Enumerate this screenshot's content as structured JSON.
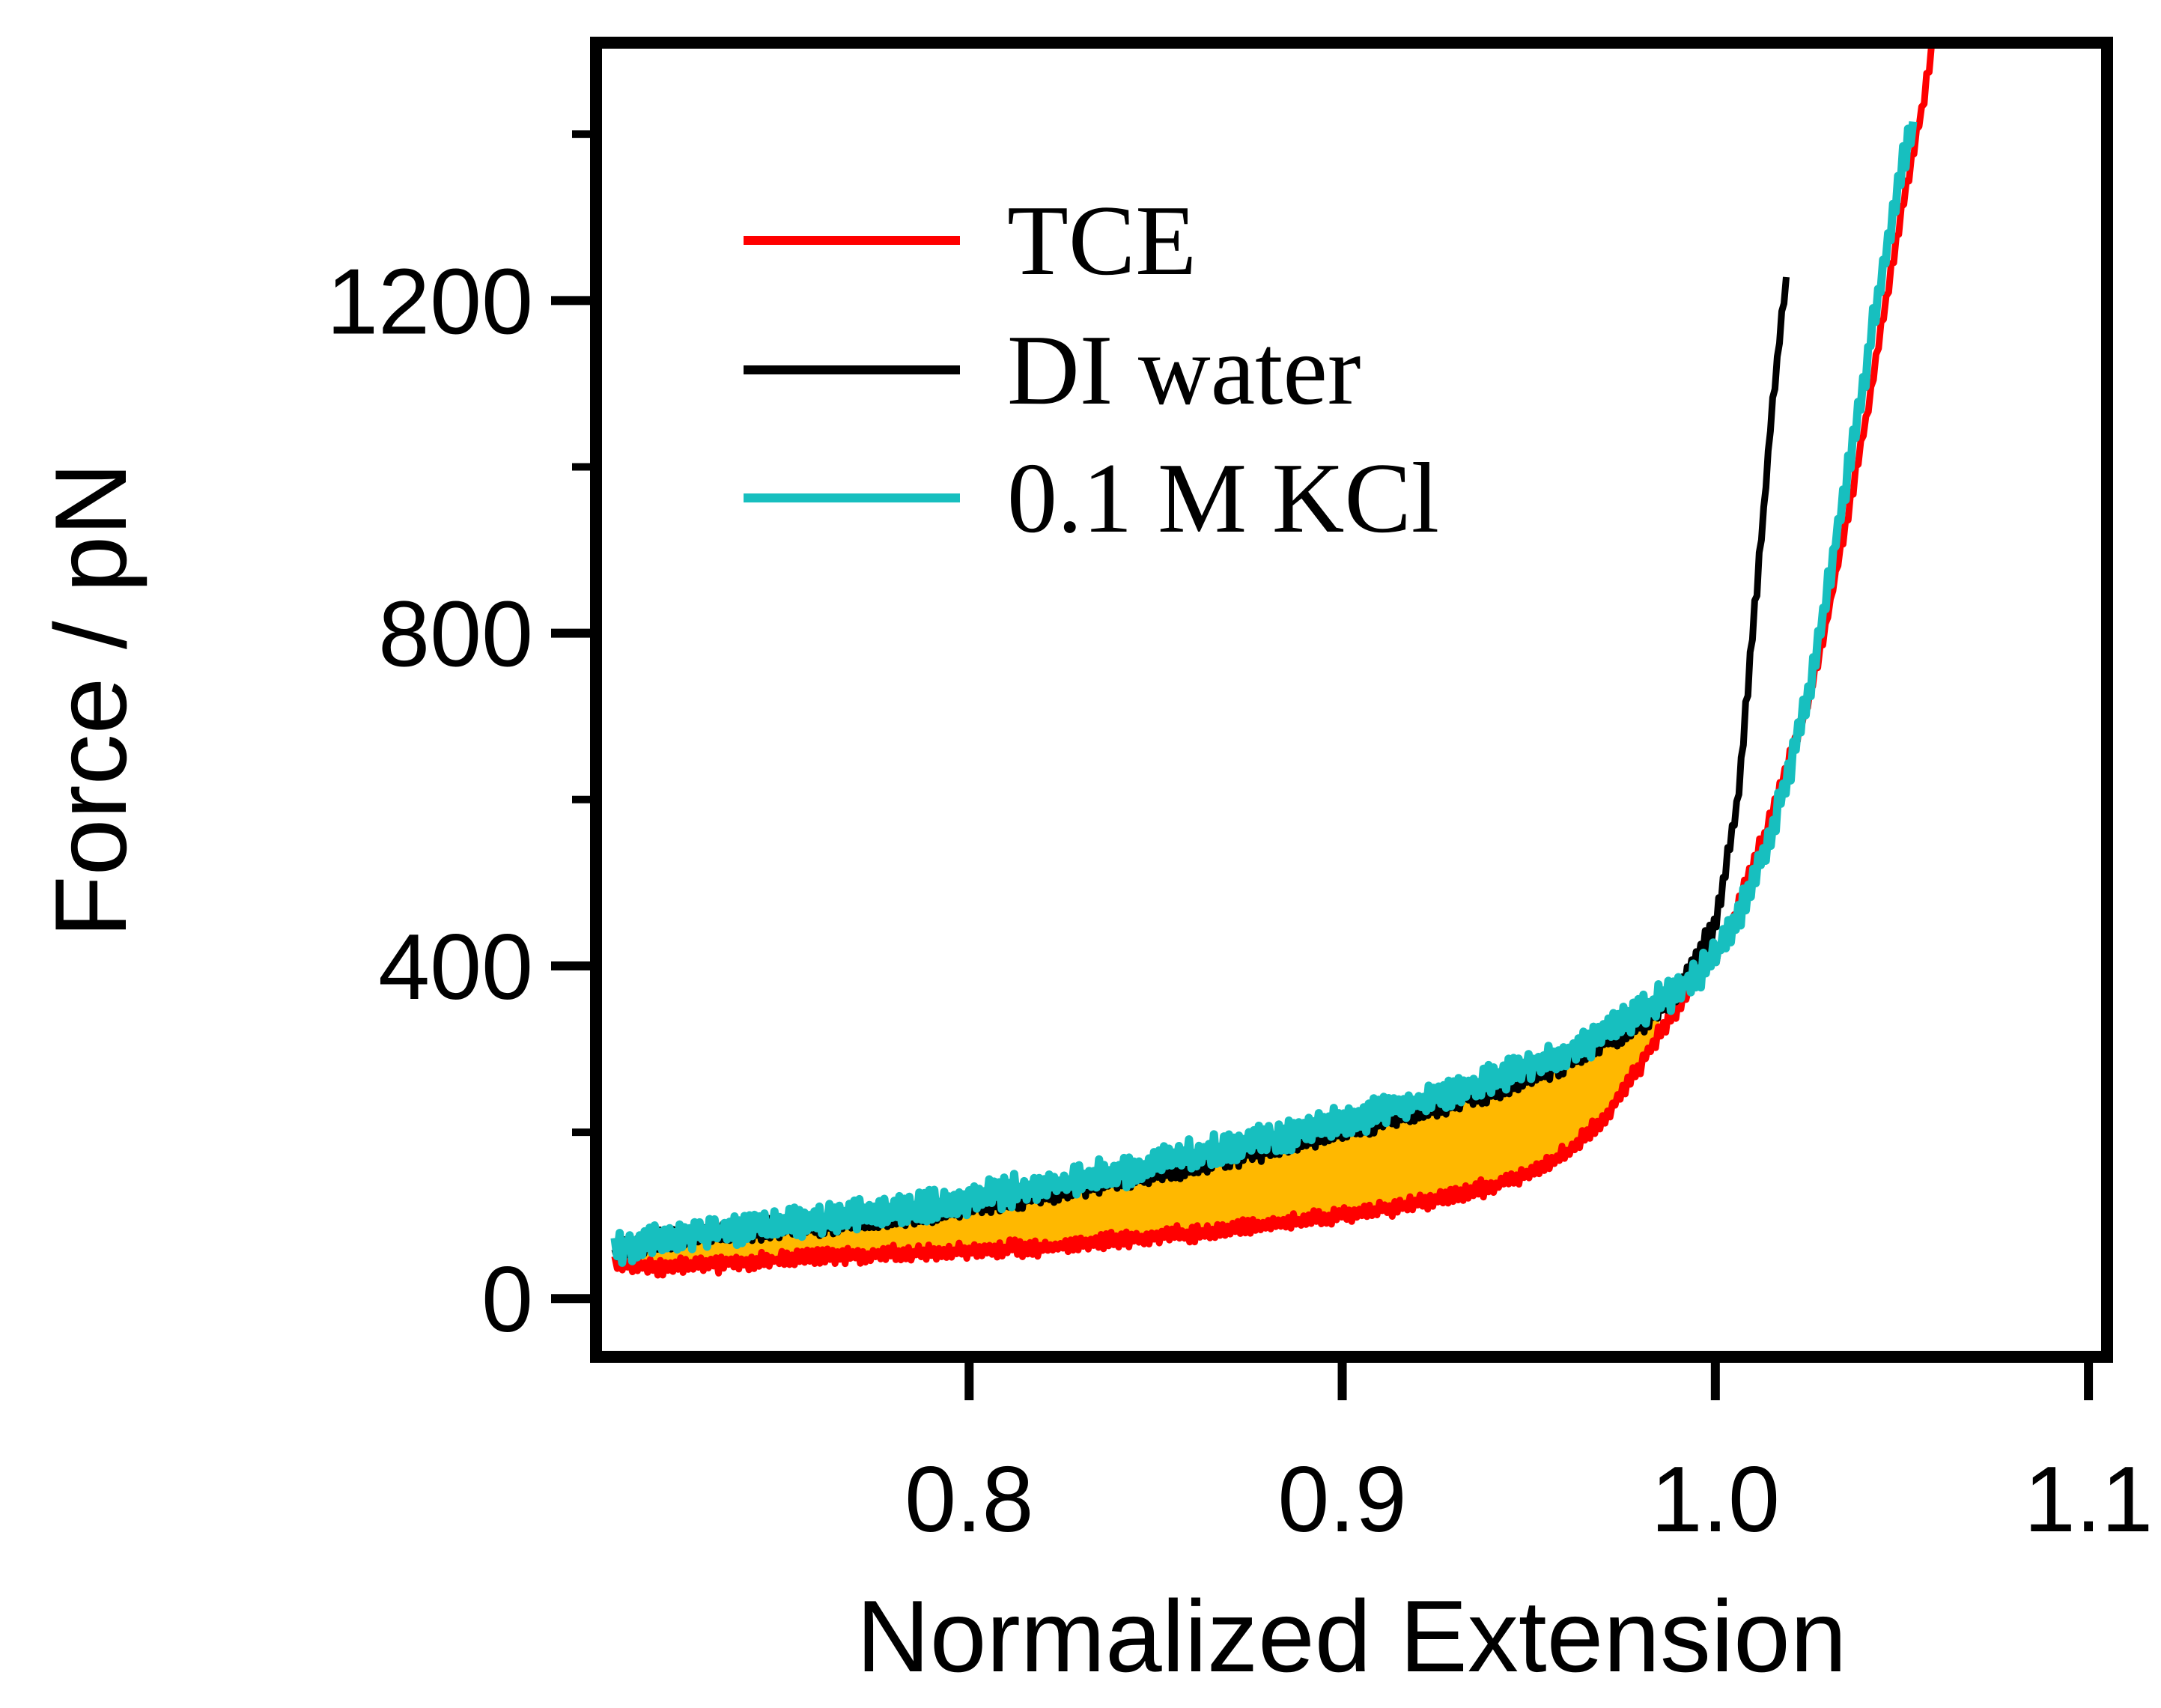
{
  "chart_data": {
    "type": "line",
    "title": "",
    "xlabel": "Normalized Extension",
    "ylabel": "Force / pN",
    "xlim": [
      0.7,
      1.105
    ],
    "ylim": [
      -70,
      1510
    ],
    "x_ticks": [
      {
        "value": 0.8,
        "label": "0.8"
      },
      {
        "value": 0.9,
        "label": "0.9"
      },
      {
        "value": 1.0,
        "label": "1.0"
      },
      {
        "value": 1.1,
        "label": "1.1"
      }
    ],
    "y_ticks": [
      {
        "value": 0,
        "label": "0"
      },
      {
        "value": 400,
        "label": "400"
      },
      {
        "value": 800,
        "label": "800"
      },
      {
        "value": 1200,
        "label": "1200"
      }
    ],
    "y_minor_step": 200,
    "grid": false,
    "legend_position": "top-left",
    "shaded_region": {
      "between": [
        "0.1 M KCl",
        "TCE"
      ],
      "x_range": [
        0.705,
        0.985
      ],
      "color": "#FFB800"
    },
    "series": [
      {
        "name": "TCE",
        "color": "#FF0000",
        "x": [
          0.705,
          0.72,
          0.74,
          0.76,
          0.78,
          0.8,
          0.82,
          0.84,
          0.86,
          0.88,
          0.9,
          0.92,
          0.94,
          0.95,
          0.96,
          0.97,
          0.98,
          0.985,
          0.99,
          0.995,
          1.0,
          1.005,
          1.01,
          1.015,
          1.02,
          1.025,
          1.03,
          1.035,
          1.04,
          1.045,
          1.05,
          1.055,
          1.058
        ],
        "y": [
          40,
          38,
          44,
          50,
          54,
          58,
          62,
          70,
          78,
          90,
          100,
          115,
          135,
          150,
          175,
          215,
          280,
          320,
          350,
          380,
          410,
          460,
          520,
          580,
          650,
          720,
          820,
          930,
          1050,
          1180,
          1310,
          1420,
          1500
        ]
      },
      {
        "name": "DI water",
        "color": "#000000",
        "x": [
          0.705,
          0.72,
          0.74,
          0.76,
          0.78,
          0.8,
          0.82,
          0.84,
          0.86,
          0.88,
          0.9,
          0.92,
          0.94,
          0.96,
          0.98,
          0.99,
          1.0,
          1.003,
          1.006,
          1.008,
          1.01,
          1.012,
          1.014,
          1.015,
          1.016,
          1.017,
          1.018,
          1.019
        ],
        "y": [
          55,
          72,
          80,
          88,
          98,
          110,
          125,
          142,
          160,
          180,
          200,
          225,
          250,
          285,
          330,
          370,
          450,
          520,
          600,
          700,
          800,
          900,
          1000,
          1060,
          1100,
          1150,
          1190,
          1220
        ]
      },
      {
        "name": "0.1 M KCl",
        "color": "#17BFBF",
        "x": [
          0.705,
          0.72,
          0.74,
          0.76,
          0.78,
          0.8,
          0.82,
          0.84,
          0.86,
          0.88,
          0.9,
          0.92,
          0.94,
          0.96,
          0.98,
          0.99,
          1.0,
          1.005,
          1.01,
          1.015,
          1.02,
          1.025,
          1.03,
          1.035,
          1.04,
          1.045,
          1.05,
          1.053
        ],
        "y": [
          60,
          75,
          85,
          95,
          105,
          118,
          135,
          152,
          172,
          192,
          212,
          235,
          262,
          295,
          345,
          370,
          410,
          450,
          500,
          560,
          640,
          730,
          850,
          980,
          1110,
          1240,
          1360,
          1410
        ]
      }
    ]
  }
}
